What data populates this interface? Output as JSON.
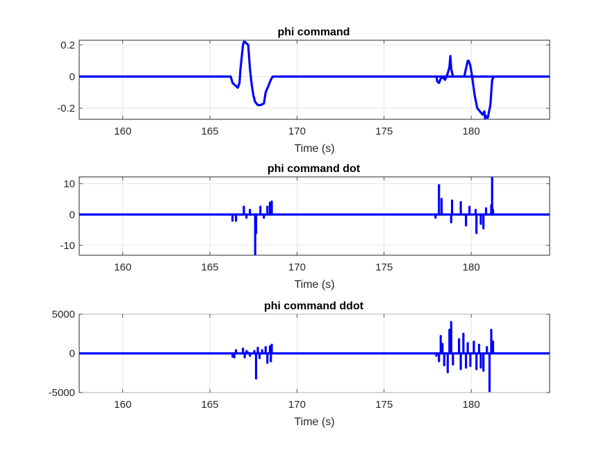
{
  "chart_data": [
    {
      "type": "line",
      "title": "phi command",
      "xlabel": "Time (s)",
      "ylabel": "",
      "xlim": [
        157.5,
        184.5
      ],
      "ylim": [
        -0.27,
        0.23
      ],
      "xticks": [
        160,
        165,
        170,
        175,
        180
      ],
      "yticks": [
        -0.2,
        0,
        0.2
      ],
      "ytick_labels": [
        "-0.2",
        "0",
        "0.2"
      ],
      "grid": true,
      "line_color": "#0000ff",
      "series": [
        {
          "x": [
            157.5,
            166.2,
            166.3,
            166.5,
            166.6,
            166.7,
            166.75,
            166.9,
            166.95,
            167.0,
            167.2,
            167.3,
            167.4,
            167.5,
            167.6,
            167.75,
            167.9,
            168.1,
            168.2,
            168.35,
            168.5,
            168.6,
            184.5
          ],
          "y": [
            0,
            0,
            -0.04,
            -0.06,
            -0.07,
            -0.04,
            0.04,
            0.2,
            0.22,
            0.22,
            0.2,
            0.05,
            -0.05,
            -0.12,
            -0.16,
            -0.18,
            -0.18,
            -0.17,
            -0.1,
            -0.06,
            -0.02,
            0,
            0
          ]
        },
        {
          "x": [
            177.9,
            178.0,
            178.05,
            178.15,
            178.3,
            178.5,
            178.65,
            178.75,
            178.8,
            178.85,
            178.95,
            179.6,
            179.7,
            179.8,
            179.85,
            179.95,
            180.05,
            180.2,
            180.35,
            180.5,
            180.65,
            180.75,
            180.8,
            180.85,
            180.95,
            181.1,
            181.2,
            181.3
          ],
          "y": [
            0,
            0,
            -0.03,
            -0.04,
            0,
            -0.02,
            0.02,
            0.06,
            0.13,
            0.05,
            0,
            0,
            0.05,
            0.1,
            0.1,
            0.07,
            0,
            -0.12,
            -0.2,
            -0.22,
            -0.24,
            -0.22,
            -0.27,
            -0.25,
            -0.26,
            -0.18,
            -0.02,
            0
          ]
        }
      ]
    },
    {
      "type": "line",
      "title": "phi command dot",
      "xlabel": "Time (s)",
      "ylabel": "",
      "xlim": [
        157.5,
        184.5
      ],
      "ylim": [
        -13.2,
        12.2
      ],
      "xticks": [
        160,
        165,
        170,
        175,
        180
      ],
      "yticks": [
        -10,
        0,
        10
      ],
      "ytick_labels": [
        "-10",
        "0",
        "10"
      ],
      "grid": true,
      "line_color": "#0000ff",
      "spikes": {
        "t": [
          166.3,
          166.5,
          166.95,
          167.1,
          167.3,
          167.6,
          167.65,
          167.9,
          168.1,
          168.3,
          168.45,
          168.55,
          177.95,
          178.15,
          178.3,
          178.85,
          178.9,
          179.4,
          179.7,
          179.9,
          180.25,
          180.3,
          180.55,
          180.7,
          180.85,
          181.15,
          181.2,
          181.25
        ],
        "v": [
          -2,
          -2,
          2.5,
          -1,
          1.5,
          -13,
          -6,
          2.5,
          -1,
          2.5,
          3.8,
          4.2,
          -1,
          9.5,
          5,
          -2.5,
          4.5,
          4,
          -3.5,
          2.5,
          1.5,
          -6,
          -3,
          -4.5,
          2,
          3,
          12,
          1.5
        ]
      }
    },
    {
      "type": "line",
      "title": "phi command ddot",
      "xlabel": "Time (s)",
      "ylabel": "",
      "xlim": [
        157.5,
        184.5
      ],
      "ylim": [
        -5000,
        5000
      ],
      "xticks": [
        160,
        165,
        170,
        175,
        180
      ],
      "yticks": [
        -5000,
        0,
        5000
      ],
      "ytick_labels": [
        "-5000",
        "0",
        "5000"
      ],
      "grid": true,
      "line_color": "#0000ff",
      "spikes": {
        "t": [
          166.3,
          166.4,
          166.5,
          166.9,
          167.0,
          167.1,
          167.2,
          167.3,
          167.55,
          167.65,
          167.75,
          167.85,
          168.0,
          168.2,
          168.3,
          168.45,
          168.5,
          168.55,
          178.0,
          178.15,
          178.25,
          178.35,
          178.45,
          178.65,
          178.75,
          178.85,
          178.95,
          179.3,
          179.4,
          179.55,
          179.7,
          179.8,
          179.95,
          180.15,
          180.3,
          180.45,
          180.55,
          180.7,
          180.9,
          181.05,
          181.15,
          181.25
        ],
        "v": [
          -400,
          -500,
          400,
          600,
          -500,
          300,
          100,
          -300,
          300,
          -3200,
          700,
          -600,
          400,
          800,
          -1200,
          900,
          -1000,
          1100,
          -300,
          -1000,
          2200,
          1200,
          -1500,
          -2400,
          3000,
          4000,
          -1400,
          1800,
          -2000,
          2500,
          -1800,
          1300,
          -1600,
          1500,
          -2000,
          1100,
          -1800,
          -2200,
          800,
          -4800,
          3000,
          1500
        ]
      }
    }
  ]
}
